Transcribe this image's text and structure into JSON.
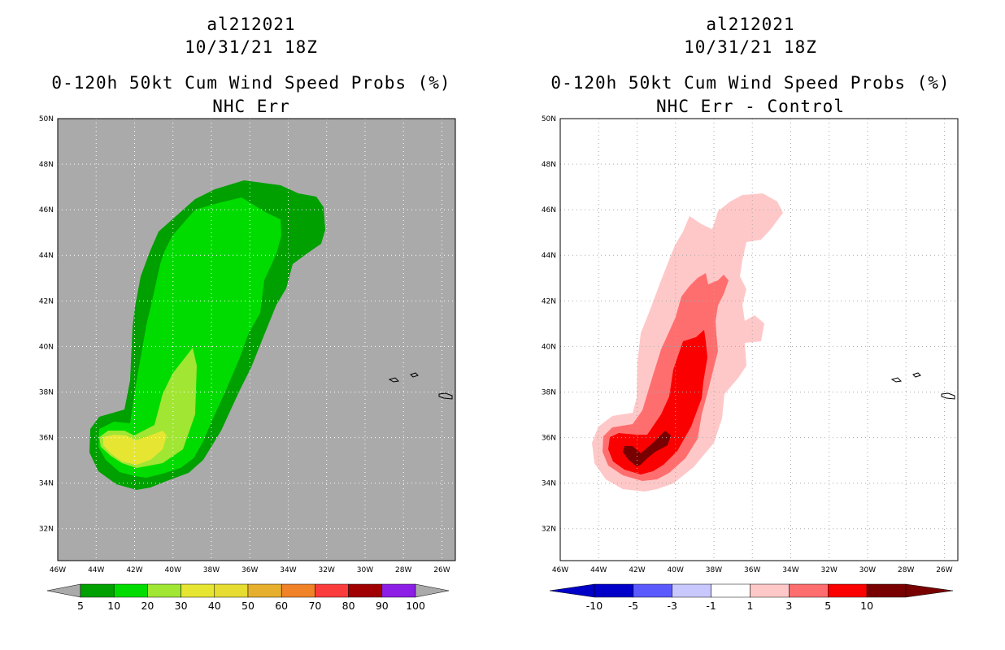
{
  "left_panel": {
    "storm_id": "al212021",
    "datetime": "10/31/21 18Z",
    "product": "0-120h 50kt Cum Wind Speed Probs (%)",
    "subtitle": "NHC Err",
    "colorbar": {
      "labels": [
        "5",
        "10",
        "20",
        "30",
        "40",
        "50",
        "60",
        "70",
        "80",
        "90",
        "100"
      ],
      "colors": [
        "#00a000",
        "#00dc00",
        "#a0e632",
        "#e6e632",
        "#e6dc32",
        "#e6af2d",
        "#f08228",
        "#fa3c3c",
        "#a00000",
        "#8c1ee6"
      ]
    }
  },
  "right_panel": {
    "storm_id": "al212021",
    "datetime": "10/31/21 18Z",
    "product": "0-120h 50kt Cum Wind Speed Probs (%)",
    "subtitle": "NHC Err - Control",
    "colorbar": {
      "labels": [
        "-10",
        "-5",
        "-3",
        "-1",
        "1",
        "3",
        "5",
        "10"
      ],
      "colors": [
        "#0000c8",
        "#5a5aff",
        "#c8c8ff",
        "#ffffff",
        "#ffc8c8",
        "#ff6e6e",
        "#fa0000",
        "#780000"
      ]
    }
  },
  "map": {
    "lat_labels": [
      "50N",
      "48N",
      "46N",
      "44N",
      "42N",
      "40N",
      "38N",
      "36N",
      "34N",
      "32N"
    ],
    "lon_labels": [
      "46W",
      "44W",
      "42W",
      "40W",
      "38W",
      "36W",
      "34W",
      "32W",
      "30W",
      "28W",
      "26W"
    ],
    "land_color": "#aaaaaa",
    "ocean_color": "#ffffff"
  }
}
